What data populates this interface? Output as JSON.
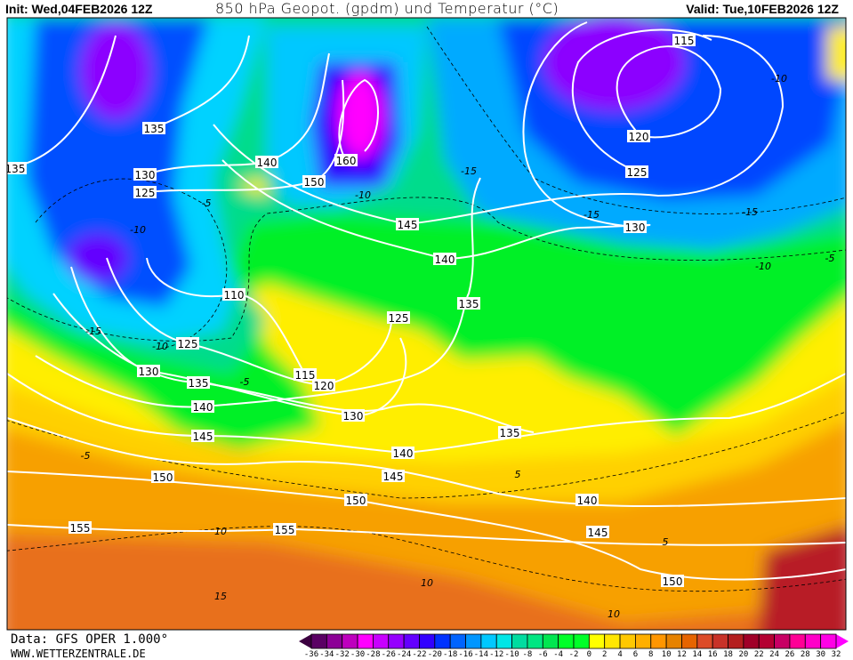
{
  "header": {
    "init": "Init: Wed,04FEB2026 12Z",
    "title": "850 hPa Geopot. (gpdm) und Temperatur (°C)",
    "valid": "Valid: Tue,10FEB2026 12Z"
  },
  "footer": {
    "source": "Data: GFS OPER 1.000°",
    "website": "WWW.WETTERZENTRALE.DE"
  },
  "map": {
    "geopotential_labels": [
      "135",
      "135",
      "130",
      "125",
      "140",
      "150",
      "160",
      "145",
      "140",
      "135",
      "125",
      "110",
      "125",
      "130",
      "135",
      "140",
      "145",
      "115",
      "120",
      "130",
      "135",
      "140",
      "145",
      "150",
      "150",
      "155",
      "155",
      "140",
      "145",
      "150",
      "115",
      "120",
      "125",
      "130"
    ],
    "temperature_labels": [
      "-15",
      "-10",
      "-5",
      "-10",
      "-15",
      "-10",
      "-5",
      "-15",
      "-15",
      "-10",
      "-10",
      "-5",
      "-5",
      "5",
      "5",
      "10",
      "10",
      "15",
      "10"
    ]
  },
  "colorbar": {
    "unit": "°C",
    "tick_labels": [
      "-36",
      "-34",
      "-32",
      "-30",
      "-28",
      "-26",
      "-24",
      "-22",
      "-20",
      "-18",
      "-16",
      "-14",
      "-12",
      "-10",
      "-8",
      "-6",
      "-4",
      "-2",
      "0",
      "2",
      "4",
      "6",
      "8",
      "10",
      "12",
      "14",
      "16",
      "18",
      "20",
      "22",
      "24",
      "26",
      "28",
      "30",
      "32"
    ],
    "colors": [
      "#5a0064",
      "#8c0096",
      "#be00be",
      "#ff00ff",
      "#c800ff",
      "#9600ff",
      "#6400ff",
      "#3200ff",
      "#0032ff",
      "#0064ff",
      "#0096ff",
      "#00c8ff",
      "#00e6e6",
      "#00dca0",
      "#00e682",
      "#00e650",
      "#00ff28",
      "#00ff28",
      "#ffff00",
      "#ffe600",
      "#ffc800",
      "#ffaf00",
      "#ff9600",
      "#e68200",
      "#e66400",
      "#dc4b28",
      "#c83228",
      "#b41e1e",
      "#a00028",
      "#b40032",
      "#c80064",
      "#ff0096",
      "#ff00c8",
      "#ff00e6"
    ],
    "under_color": "#3c0040",
    "over_color": "#ff00ff"
  }
}
